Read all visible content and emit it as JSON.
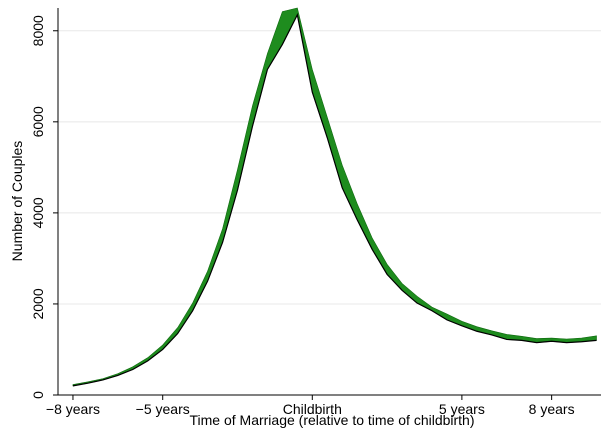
{
  "chart_data": {
    "type": "area",
    "xlabel": "Time of Marriage (relative to time of childbirth)",
    "ylabel": "Number of Couples",
    "xlim": [
      -8.5,
      9.65
    ],
    "ylim": [
      0,
      8500
    ],
    "grid": true,
    "x_ticks": [
      {
        "value": -8,
        "label": "−8 years"
      },
      {
        "value": -5,
        "label": "−5 years"
      },
      {
        "value": 0,
        "label": "Childbirth"
      },
      {
        "value": 5,
        "label": "5 years"
      },
      {
        "value": 8,
        "label": "8 years"
      }
    ],
    "y_ticks": [
      0,
      2000,
      4000,
      6000,
      8000
    ],
    "band_color": "#1e8c1e",
    "line_color": "#000000",
    "x": [
      -8,
      -7.5,
      -7,
      -6.5,
      -6,
      -5.5,
      -5,
      -4.5,
      -4,
      -3.5,
      -3,
      -2.5,
      -2,
      -1.5,
      -1,
      -0.5,
      0,
      0.5,
      1,
      1.5,
      2,
      2.5,
      3,
      3.5,
      4,
      4.5,
      5,
      5.5,
      6,
      6.5,
      7,
      7.5,
      8,
      8.5,
      9,
      9.5
    ],
    "lower": [
      200,
      260,
      330,
      430,
      560,
      750,
      1000,
      1350,
      1850,
      2500,
      3350,
      4500,
      5900,
      7150,
      7700,
      8350,
      6650,
      5650,
      4550,
      3850,
      3200,
      2650,
      2300,
      2020,
      1850,
      1650,
      1520,
      1400,
      1320,
      1220,
      1200,
      1150,
      1180,
      1150,
      1170,
      1200
    ],
    "upper": [
      230,
      290,
      360,
      470,
      620,
      820,
      1100,
      1480,
      2020,
      2720,
      3650,
      4950,
      6350,
      7500,
      8420,
      8500,
      7150,
      6100,
      5050,
      4200,
      3450,
      2870,
      2450,
      2170,
      1930,
      1780,
      1620,
      1500,
      1410,
      1330,
      1290,
      1240,
      1250,
      1230,
      1250,
      1300
    ]
  }
}
